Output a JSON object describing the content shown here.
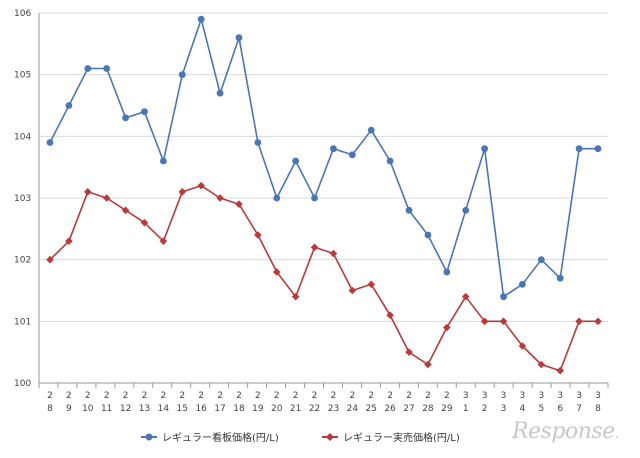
{
  "chart_data": {
    "type": "line",
    "categories": [
      [
        "2",
        "8"
      ],
      [
        "2",
        "9"
      ],
      [
        "2",
        "10"
      ],
      [
        "2",
        "11"
      ],
      [
        "2",
        "12"
      ],
      [
        "2",
        "13"
      ],
      [
        "2",
        "14"
      ],
      [
        "2",
        "15"
      ],
      [
        "2",
        "16"
      ],
      [
        "2",
        "17"
      ],
      [
        "2",
        "18"
      ],
      [
        "2",
        "19"
      ],
      [
        "2",
        "20"
      ],
      [
        "2",
        "21"
      ],
      [
        "2",
        "22"
      ],
      [
        "2",
        "23"
      ],
      [
        "2",
        "24"
      ],
      [
        "2",
        "25"
      ],
      [
        "2",
        "26"
      ],
      [
        "2",
        "27"
      ],
      [
        "2",
        "28"
      ],
      [
        "2",
        "29"
      ],
      [
        "3",
        "1"
      ],
      [
        "3",
        "2"
      ],
      [
        "3",
        "3"
      ],
      [
        "3",
        "4"
      ],
      [
        "3",
        "5"
      ],
      [
        "3",
        "6"
      ],
      [
        "3",
        "7"
      ],
      [
        "3",
        "8"
      ]
    ],
    "ylim": [
      100,
      106
    ],
    "yticks": [
      100,
      101,
      102,
      103,
      104,
      105,
      106
    ],
    "grid": true,
    "legend": "bottom",
    "series": [
      {
        "name": "レギュラー看板価格(円/L)",
        "color": "#4a76b4",
        "marker": "circle",
        "values": [
          103.9,
          104.5,
          105.1,
          105.1,
          104.3,
          104.4,
          103.6,
          105.0,
          105.9,
          104.7,
          105.6,
          103.9,
          103.0,
          103.6,
          103.0,
          103.8,
          103.7,
          104.1,
          103.6,
          102.8,
          102.4,
          101.8,
          102.8,
          103.8,
          101.4,
          101.6,
          102.0,
          101.7,
          103.8,
          103.8
        ]
      },
      {
        "name": "レギュラー実売価格(円/L)",
        "color": "#b83a3a",
        "marker": "diamond",
        "values": [
          102.0,
          102.3,
          103.1,
          103.0,
          102.8,
          102.6,
          102.3,
          103.1,
          103.2,
          103.0,
          102.9,
          102.4,
          101.8,
          101.4,
          102.2,
          102.1,
          101.5,
          101.6,
          101.1,
          100.5,
          100.3,
          100.9,
          101.4,
          101.0,
          101.0,
          100.6,
          100.3,
          100.2,
          101.0,
          101.0
        ]
      }
    ]
  },
  "watermark": {
    "text": "Response",
    "dot": "."
  }
}
